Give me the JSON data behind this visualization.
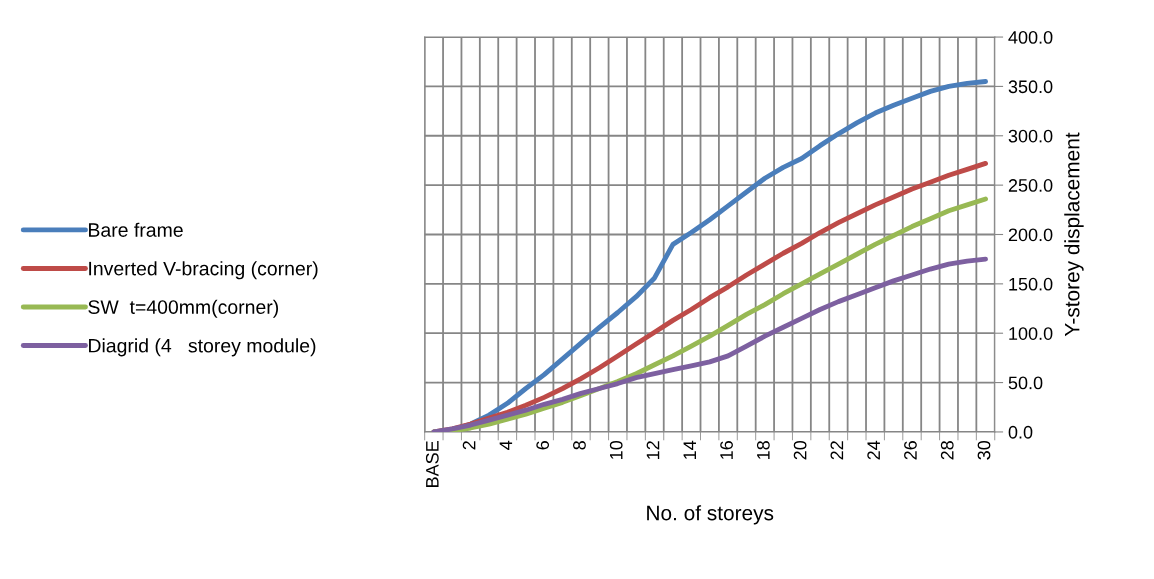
{
  "chart_data": {
    "type": "line",
    "xlabel": "No. of storeys",
    "ylabel": "Y-storey displacement",
    "categories": [
      "BASE",
      null,
      "2",
      null,
      "4",
      null,
      "6",
      null,
      "8",
      null,
      "10",
      null,
      "12",
      null,
      "14",
      null,
      "16",
      null,
      "18",
      null,
      "20",
      null,
      "22",
      null,
      "24",
      null,
      "26",
      null,
      "28",
      null,
      "30"
    ],
    "series": [
      {
        "name": "Bare frame",
        "color": "#4a7ebb",
        "values": [
          0,
          2,
          8,
          17,
          29,
          44,
          58,
          74,
          90,
          106,
          121,
          137,
          156,
          190,
          202,
          215,
          229,
          243,
          257,
          268,
          277,
          290,
          302,
          313,
          323,
          331,
          338,
          345,
          350,
          353,
          355
        ]
      },
      {
        "name": "Inverted V-bracing (corner)",
        "color": "#be4b48",
        "values": [
          0,
          3,
          8,
          14,
          20,
          27,
          35,
          44,
          54,
          65,
          77,
          89,
          101,
          113,
          124,
          136,
          147,
          159,
          170,
          181,
          191,
          202,
          212,
          221,
          230,
          238,
          246,
          253,
          260,
          266,
          272
        ]
      },
      {
        "name": "SW  t=400mm(corner)",
        "color": "#98b954",
        "values": [
          0,
          1,
          4,
          8,
          13,
          18,
          24,
          30,
          37,
          44,
          51,
          59,
          68,
          77,
          87,
          97,
          108,
          119,
          129,
          140,
          150,
          160,
          170,
          180,
          190,
          199,
          208,
          216,
          224,
          230,
          236
        ]
      },
      {
        "name": "Diagrid (4   storey module)",
        "color": "#7d60a0",
        "values": [
          0,
          3,
          7,
          12,
          17,
          22,
          28,
          33,
          39,
          44,
          49,
          55,
          59,
          63,
          67,
          71,
          77,
          87,
          97,
          106,
          115,
          124,
          132,
          139,
          146,
          153,
          159,
          165,
          170,
          173,
          175
        ]
      }
    ],
    "ylim": [
      0,
      400
    ],
    "yticks": [
      {
        "value": 0,
        "label": "0.0"
      },
      {
        "value": 50,
        "label": "50.0"
      },
      {
        "value": 100,
        "label": "100.0"
      },
      {
        "value": 150,
        "label": "150.0"
      },
      {
        "value": 200,
        "label": "200.0"
      },
      {
        "value": 250,
        "label": "250.0"
      },
      {
        "value": 300,
        "label": "300.0"
      },
      {
        "value": 350,
        "label": "350.0"
      },
      {
        "value": 400,
        "label": "400.0"
      }
    ],
    "grid": true,
    "legend": "left",
    "marker": "none",
    "line_style": "solid"
  }
}
